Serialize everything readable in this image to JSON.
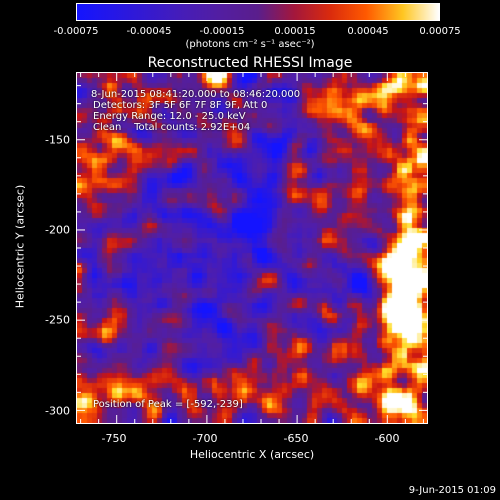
{
  "colorbar": {
    "tick_labels": [
      "-0.00075",
      "-0.00045",
      "-0.00015",
      "0.00015",
      "0.00045",
      "0.00075"
    ],
    "units": "(photons cm⁻² s⁻¹ asec⁻²)"
  },
  "title": "Reconstructed RHESSI Image",
  "annotations": {
    "time_range": "8-Jun-2015 08:41:20.000 to 08:46:20.000",
    "detectors": "Detectors: 3F 5F 6F 7F 8F 9F, Att 0",
    "energy": "Energy Range: 12.0 - 25.0 keV",
    "clean": "Clean    Total counts: 2.92E+04",
    "peak": "Position of Peak = [-592,-239]"
  },
  "axes": {
    "xlabel": "Heliocentric X (arcsec)",
    "ylabel": "Heliocentric Y (arcsec)",
    "xticks": [
      -750,
      -700,
      -650,
      -600
    ],
    "yticks": [
      -150,
      -200,
      -250,
      -300
    ],
    "xlim": [
      -772,
      -578
    ],
    "ylim": [
      -307,
      -113
    ]
  },
  "timestamp": "9-Jun-2015 01:09",
  "colors": {
    "map_low": "#2020ff",
    "map_mid": "#5a20a0",
    "map_high": "#ff3000",
    "map_peak": "#ffff80"
  }
}
